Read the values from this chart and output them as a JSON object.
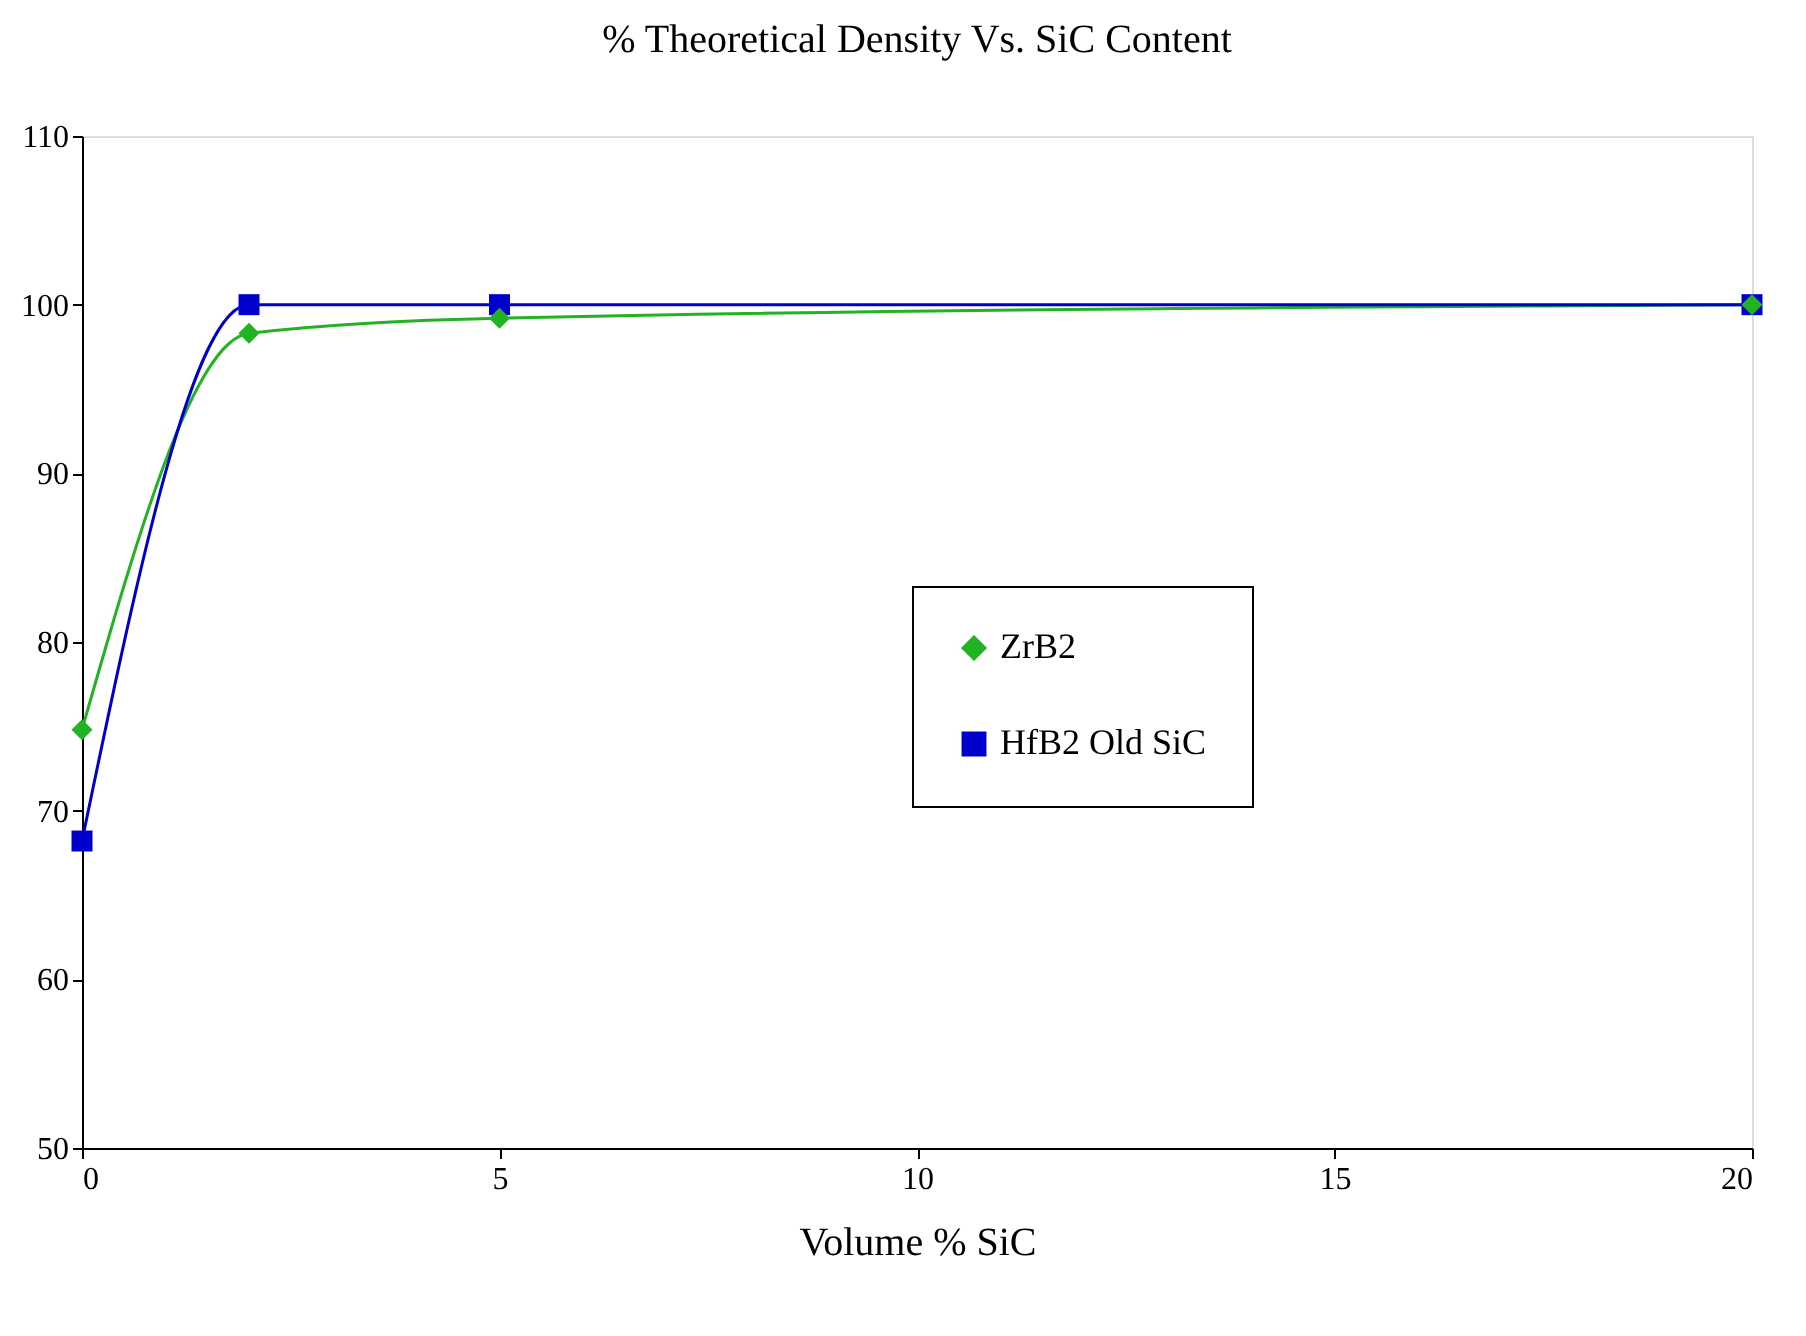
{
  "chart_data": {
    "type": "line",
    "title": "% Theoretical Density Vs. SiC Content",
    "xlabel": "Volume % SiC",
    "x": [
      0,
      2,
      5,
      20
    ],
    "series": [
      {
        "name": "ZrB2",
        "color": "#22b322",
        "values": [
          74.8,
          98.3,
          99.2,
          100
        ],
        "marker": "diamond"
      },
      {
        "name": "HfB2 Old SiC",
        "color": "#0000cc",
        "values": [
          68.2,
          100,
          100,
          100
        ],
        "marker": "square"
      }
    ],
    "xlim": [
      0,
      20
    ],
    "xticks": [
      0,
      5,
      10,
      15,
      20
    ],
    "ylim": [
      50,
      110
    ],
    "yticks": [
      50,
      60,
      70,
      80,
      90,
      100,
      110
    ],
    "grid": false,
    "legend": "right",
    "line_style": "solid"
  }
}
